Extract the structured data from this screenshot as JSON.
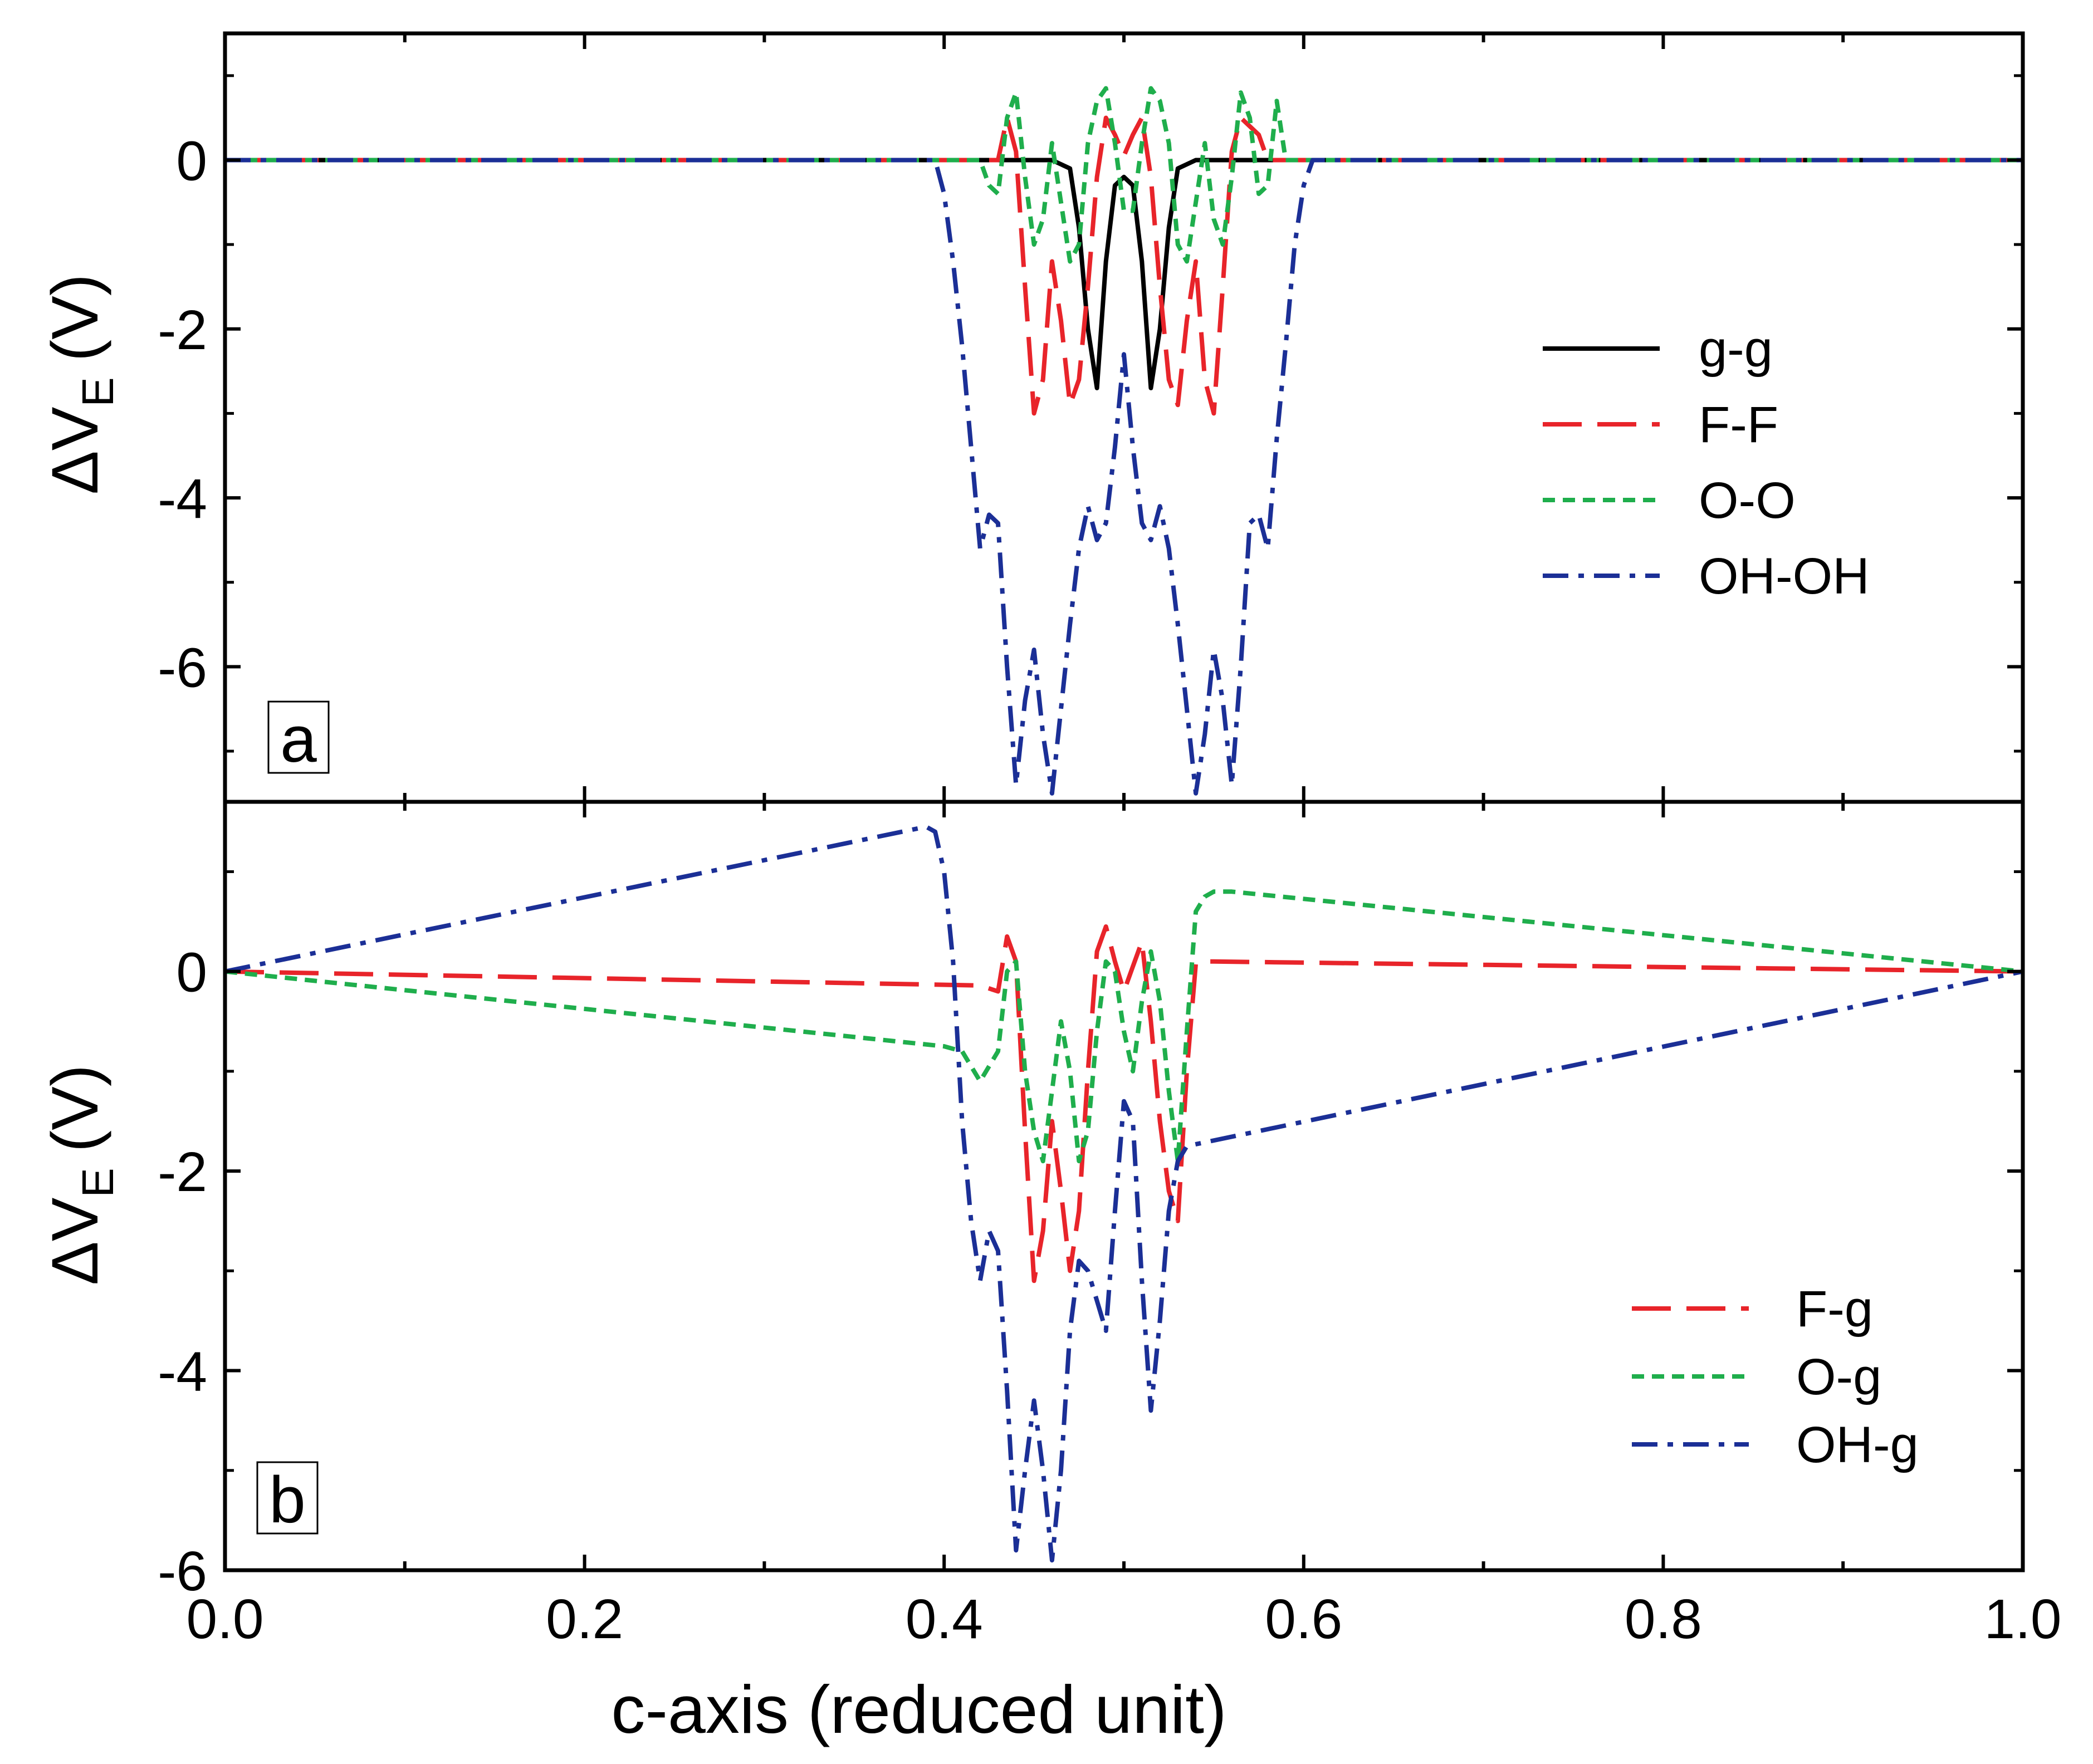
{
  "chart_data": {
    "x_label": "c-axis (reduced unit)",
    "x_range": [
      0.0,
      1.0
    ],
    "x_ticks": [
      0.0,
      0.2,
      0.4,
      0.6,
      0.8,
      1.0
    ],
    "x_tick_labels": [
      "0.0",
      "0.2",
      "0.4",
      "0.6",
      "0.8",
      "1.0"
    ],
    "panels": [
      {
        "id": "a",
        "type": "line",
        "panel_label": "a",
        "ylabel_main": "ΔV",
        "ylabel_sub": "E",
        "ylabel_unit": "(V)",
        "y_range": [
          -7.6,
          1.5
        ],
        "y_ticks": [
          0,
          -2,
          -4,
          -6
        ],
        "y_tick_labels": [
          "0",
          "-2",
          "-4",
          "-6"
        ],
        "legend_position": "right-middle",
        "series": [
          {
            "name": "g-g",
            "color": "#000000",
            "dash": "solid",
            "x": [
              0,
              0.46,
              0.47,
              0.475,
              0.48,
              0.485,
              0.49,
              0.495,
              0.5,
              0.505,
              0.51,
              0.515,
              0.52,
              0.525,
              0.53,
              0.54,
              1
            ],
            "y": [
              0,
              0,
              -0.1,
              -0.8,
              -2.0,
              -2.7,
              -1.2,
              -0.3,
              -0.2,
              -0.3,
              -1.2,
              -2.7,
              -2.0,
              -0.8,
              -0.1,
              0,
              0
            ]
          },
          {
            "name": "F-F",
            "color": "#e8242a",
            "dash": "long-dash",
            "x": [
              0,
              0.42,
              0.43,
              0.435,
              0.44,
              0.445,
              0.45,
              0.455,
              0.46,
              0.465,
              0.47,
              0.475,
              0.48,
              0.485,
              0.49,
              0.495,
              0.5,
              0.505,
              0.51,
              0.515,
              0.52,
              0.525,
              0.53,
              0.535,
              0.54,
              0.545,
              0.55,
              0.555,
              0.56,
              0.565,
              0.57,
              0.575,
              0.58,
              0.59,
              0.6,
              1
            ],
            "y": [
              0,
              0,
              0,
              0.5,
              0.1,
              -1.5,
              -3.0,
              -2.6,
              -1.2,
              -1.9,
              -2.9,
              -2.6,
              -1.5,
              -0.2,
              0.5,
              0.3,
              0.05,
              0.3,
              0.5,
              -0.2,
              -1.5,
              -2.6,
              -2.9,
              -1.9,
              -1.2,
              -2.6,
              -3.0,
              -1.5,
              0.1,
              0.5,
              0.4,
              0.3,
              0,
              0,
              0,
              0
            ]
          },
          {
            "name": "O-O",
            "color": "#1fae4c",
            "dash": "short-dash",
            "x": [
              0,
              0.42,
              0.425,
              0.43,
              0.435,
              0.44,
              0.445,
              0.45,
              0.455,
              0.46,
              0.465,
              0.47,
              0.475,
              0.48,
              0.485,
              0.49,
              0.495,
              0.5,
              0.505,
              0.51,
              0.515,
              0.52,
              0.525,
              0.53,
              0.535,
              0.54,
              0.545,
              0.55,
              0.555,
              0.56,
              0.565,
              0.57,
              0.575,
              0.58,
              0.585,
              0.59,
              0.6,
              1
            ],
            "y": [
              0,
              0,
              -0.3,
              -0.4,
              0.5,
              0.8,
              -0.2,
              -1.0,
              -0.7,
              0.2,
              -0.5,
              -1.2,
              -1.0,
              0.2,
              0.7,
              0.85,
              0.2,
              -0.6,
              -0.6,
              0.2,
              0.85,
              0.7,
              0.2,
              -1.0,
              -1.2,
              -0.5,
              0.2,
              -0.7,
              -1.0,
              -0.2,
              0.8,
              0.5,
              -0.4,
              -0.3,
              0.7,
              0,
              0,
              0
            ]
          },
          {
            "name": "OH-OH",
            "color": "#1b2f96",
            "dash": "dash-dot",
            "x": [
              0,
              0.395,
              0.4,
              0.405,
              0.41,
              0.42,
              0.425,
              0.43,
              0.435,
              0.44,
              0.445,
              0.45,
              0.455,
              0.46,
              0.465,
              0.47,
              0.475,
              0.48,
              0.485,
              0.49,
              0.495,
              0.5,
              0.505,
              0.51,
              0.515,
              0.52,
              0.525,
              0.53,
              0.535,
              0.54,
              0.545,
              0.55,
              0.555,
              0.56,
              0.565,
              0.57,
              0.575,
              0.58,
              0.585,
              0.59,
              0.595,
              0.6,
              0.605,
              1
            ],
            "y": [
              0,
              0,
              -0.4,
              -1.2,
              -2.2,
              -4.6,
              -4.2,
              -4.3,
              -6.0,
              -7.4,
              -6.4,
              -5.8,
              -6.8,
              -7.5,
              -6.5,
              -5.5,
              -4.6,
              -4.1,
              -4.5,
              -4.3,
              -3.4,
              -2.3,
              -3.4,
              -4.3,
              -4.5,
              -4.1,
              -4.6,
              -5.5,
              -6.5,
              -7.5,
              -6.8,
              -5.8,
              -6.4,
              -7.4,
              -6.0,
              -4.3,
              -4.2,
              -4.6,
              -3.3,
              -2.2,
              -1.0,
              -0.3,
              0,
              0
            ]
          }
        ],
        "legend": [
          {
            "label": "g-g",
            "color": "#000000",
            "dash": "solid"
          },
          {
            "label": "F-F",
            "color": "#e8242a",
            "dash": "long-dash"
          },
          {
            "label": "O-O",
            "color": "#1fae4c",
            "dash": "short-dash"
          },
          {
            "label": "OH-OH",
            "color": "#1b2f96",
            "dash": "dash-dot"
          }
        ]
      },
      {
        "id": "b",
        "type": "line",
        "panel_label": "b",
        "ylabel_main": "ΔV",
        "ylabel_sub": "E",
        "ylabel_unit": "(V)",
        "y_range": [
          -6.0,
          1.7
        ],
        "y_ticks": [
          0,
          -2,
          -4,
          -6
        ],
        "y_tick_labels": [
          "0",
          "-2",
          "-4",
          "-6"
        ],
        "legend_position": "bottom-right",
        "series": [
          {
            "name": "F-g",
            "color": "#e8242a",
            "dash": "long-dash",
            "x": [
              0,
              0.42,
              0.43,
              0.435,
              0.44,
              0.445,
              0.45,
              0.455,
              0.46,
              0.465,
              0.47,
              0.475,
              0.48,
              0.485,
              0.49,
              0.495,
              0.5,
              0.505,
              0.51,
              0.515,
              0.52,
              0.525,
              0.53,
              0.535,
              0.54,
              0.545,
              0.55,
              1
            ],
            "y": [
              0,
              -0.14,
              -0.2,
              0.35,
              0.1,
              -1.6,
              -3.1,
              -2.6,
              -1.5,
              -2.2,
              -3.0,
              -2.4,
              -1.0,
              0.2,
              0.45,
              0.1,
              -0.2,
              0.05,
              0.3,
              -0.5,
              -1.5,
              -2.2,
              -2.5,
              -1.0,
              0.08,
              0.1,
              0.1,
              0
            ]
          },
          {
            "name": "O-g",
            "color": "#1fae4c",
            "dash": "short-dash",
            "x": [
              0,
              0.4,
              0.41,
              0.42,
              0.43,
              0.435,
              0.44,
              0.445,
              0.45,
              0.455,
              0.46,
              0.465,
              0.47,
              0.475,
              0.48,
              0.485,
              0.49,
              0.495,
              0.5,
              0.505,
              0.51,
              0.515,
              0.52,
              0.525,
              0.53,
              0.535,
              0.54,
              0.545,
              0.55,
              0.56,
              1
            ],
            "y": [
              0,
              -0.75,
              -0.8,
              -1.1,
              -0.8,
              0,
              0.1,
              -1.0,
              -1.6,
              -1.9,
              -1.2,
              -0.5,
              -1.0,
              -1.9,
              -1.6,
              -0.6,
              0.1,
              0.0,
              -0.6,
              -1.0,
              -0.3,
              0.2,
              -0.3,
              -1.2,
              -1.9,
              -0.6,
              0.6,
              0.75,
              0.8,
              0.8,
              0
            ]
          },
          {
            "name": "OH-g",
            "color": "#1b2f96",
            "dash": "dash-dot",
            "x": [
              0,
              0.39,
              0.395,
              0.4,
              0.405,
              0.41,
              0.415,
              0.42,
              0.425,
              0.43,
              0.435,
              0.44,
              0.445,
              0.45,
              0.455,
              0.46,
              0.465,
              0.47,
              0.475,
              0.48,
              0.485,
              0.49,
              0.495,
              0.5,
              0.505,
              0.51,
              0.515,
              0.52,
              0.525,
              0.53,
              0.535,
              1
            ],
            "y": [
              0,
              1.45,
              1.4,
              1.0,
              0.1,
              -1.5,
              -2.5,
              -3.1,
              -2.6,
              -2.8,
              -4.2,
              -5.8,
              -5.0,
              -4.3,
              -5.0,
              -5.9,
              -5.0,
              -3.6,
              -2.9,
              -3.0,
              -3.3,
              -3.6,
              -2.4,
              -1.3,
              -1.5,
              -3.1,
              -4.4,
              -3.5,
              -2.4,
              -1.9,
              -1.75,
              0
            ]
          }
        ],
        "legend": [
          {
            "label": "F-g",
            "color": "#e8242a",
            "dash": "long-dash"
          },
          {
            "label": "O-g",
            "color": "#1fae4c",
            "dash": "short-dash"
          },
          {
            "label": "OH-g",
            "color": "#1b2f96",
            "dash": "dash-dot"
          }
        ]
      }
    ]
  }
}
